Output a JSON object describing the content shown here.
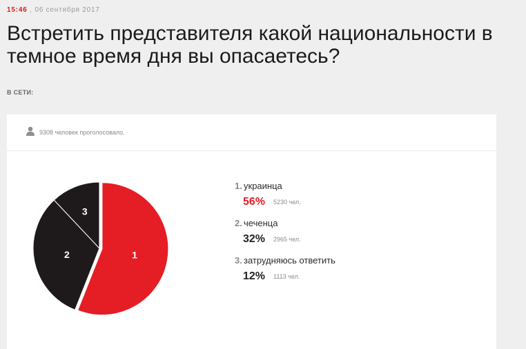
{
  "meta": {
    "time": "15:46",
    "date": ", 06 сентября 2017"
  },
  "title": "Встретить представителя какой национальности в темное время дня вы опасаетесь?",
  "network_label": "В СЕТИ:",
  "poll": {
    "voted_text": "9308 человек проголосовало.",
    "icon": "user-icon",
    "colors": {
      "leader": "#e51d25",
      "other": "#1e1a1b"
    },
    "options": [
      {
        "num": "1.",
        "label": "украинца",
        "percent": "56%",
        "count": "5230 чел.",
        "marker": "1"
      },
      {
        "num": "2.",
        "label": "чеченца",
        "percent": "32%",
        "count": "2965 чел.",
        "marker": "2"
      },
      {
        "num": "3.",
        "label": "затрудняюсь ответить",
        "percent": "12%",
        "count": "1113 чел.",
        "marker": "3"
      }
    ]
  },
  "chart_data": {
    "type": "pie",
    "categories": [
      "украинца",
      "чеченца",
      "затрудняюсь ответить"
    ],
    "values": [
      56,
      32,
      12
    ],
    "counts": [
      5230,
      2965,
      1113
    ],
    "colors": [
      "#e51d25",
      "#1e1a1b",
      "#1e1a1b"
    ]
  }
}
